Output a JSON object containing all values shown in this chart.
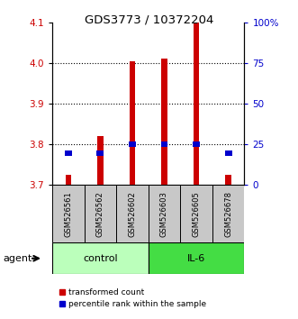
{
  "title": "GDS3773 / 10372204",
  "samples": [
    "GSM526561",
    "GSM526562",
    "GSM526602",
    "GSM526603",
    "GSM526605",
    "GSM526678"
  ],
  "ylim_left": [
    3.7,
    4.1
  ],
  "ylim_right": [
    0,
    100
  ],
  "yticks_left": [
    3.7,
    3.8,
    3.9,
    4.0,
    4.1
  ],
  "yticks_right": [
    0,
    25,
    50,
    75,
    100
  ],
  "ytick_labels_right": [
    "0",
    "25",
    "50",
    "75",
    "100%"
  ],
  "red_bar_bottoms": [
    3.7,
    3.7,
    3.7,
    3.7,
    3.7,
    3.7
  ],
  "red_bar_tops": [
    3.725,
    3.82,
    4.005,
    4.01,
    4.1,
    3.725
  ],
  "blue_marker_values": [
    3.778,
    3.778,
    3.8,
    3.8,
    3.8,
    3.778
  ],
  "red_color": "#CC0000",
  "blue_color": "#0000CC",
  "label_color_left": "#CC0000",
  "label_color_right": "#0000CC",
  "agent_label": "agent",
  "legend_red": "transformed count",
  "legend_blue": "percentile rank within the sample",
  "dotted_lines": [
    3.8,
    3.9,
    4.0
  ],
  "gray_bg": "#C8C8C8",
  "green_light": "#BBFFBB",
  "green_dark": "#44DD44",
  "group_labels": [
    "control",
    "IL-6"
  ],
  "group_colors": [
    "#BBFFBB",
    "#44DD44"
  ]
}
